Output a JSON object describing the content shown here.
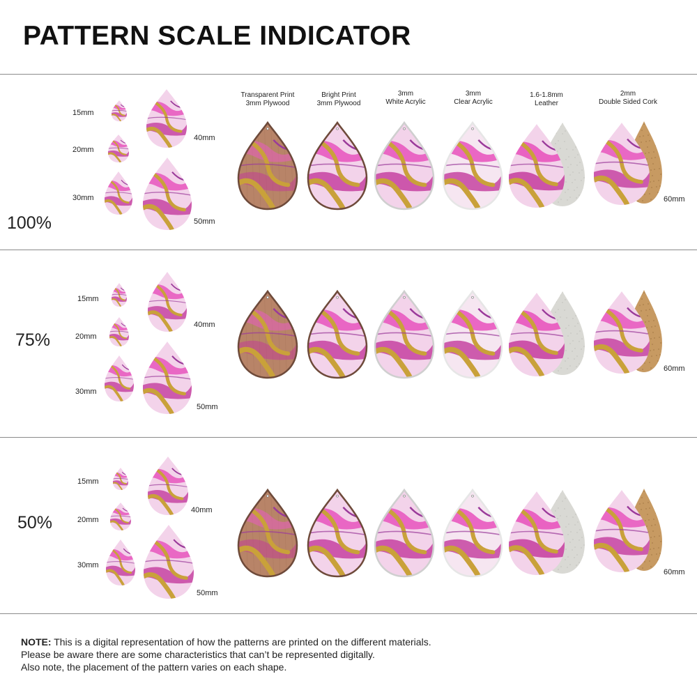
{
  "title": "PATTERN SCALE INDICATOR",
  "materials": [
    {
      "line1": "Transparent Print",
      "line2": "3mm Plywood",
      "type": "plywood-transparent"
    },
    {
      "line1": "Bright Print",
      "line2": "3mm Plywood",
      "type": "plywood-bright"
    },
    {
      "line1": "3mm",
      "line2": "White Acrylic",
      "type": "acrylic-white"
    },
    {
      "line1": "3mm",
      "line2": "Clear Acrylic",
      "type": "acrylic-clear"
    },
    {
      "line1": "1.6-1.8mm",
      "line2": "Leather",
      "type": "leather"
    },
    {
      "line1": "2mm",
      "line2": "Double Sided Cork",
      "type": "cork"
    }
  ],
  "size_labels": {
    "s15": "15mm",
    "s20": "20mm",
    "s30": "30mm",
    "s40": "40mm",
    "s50": "50mm",
    "s60": "60mm"
  },
  "sections": [
    {
      "scale": "100%"
    },
    {
      "scale": "75%"
    },
    {
      "scale": "50%"
    }
  ],
  "colors": {
    "pink": "#e85cc0",
    "magenta": "#c2349a",
    "light_pink": "#f3d3ea",
    "purple": "#9a3a9a",
    "gold": "#c9a13a",
    "wood": "#b88468",
    "cork": "#c79a62",
    "leather_back": "#d9d9d4",
    "rule": "#8a8a8a"
  },
  "note": {
    "label": "NOTE:",
    "line1": " This is a digital representation of how the patterns are printed on the different materials.",
    "line2": "Please be aware there are some characteristics that can’t be represented digitally.",
    "line3": "Also note, the placement of the pattern varies on each shape."
  }
}
